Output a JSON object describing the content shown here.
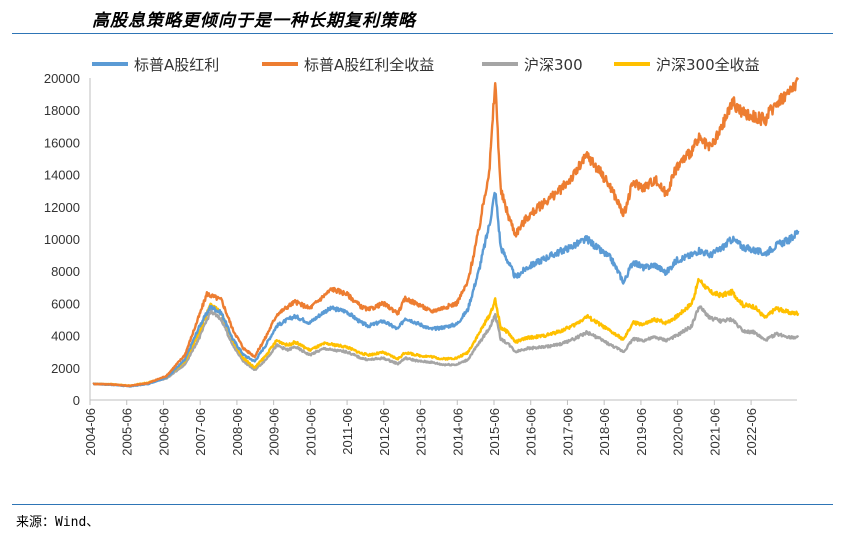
{
  "header": {
    "title": "高股息策略更倾向于是一种长期复利策略"
  },
  "footer": {
    "source": "来源：Wind、"
  },
  "colors": {
    "rule": "#2e75b6"
  },
  "chart_data": {
    "type": "line",
    "title": "高股息策略更倾向于是一种长期复利策略",
    "xlabel": "",
    "ylabel": "",
    "ylim": [
      0,
      20000
    ],
    "yticks": [
      0,
      2000,
      4000,
      6000,
      8000,
      10000,
      12000,
      14000,
      16000,
      18000,
      20000
    ],
    "xticks": [
      "2004-06",
      "2005-06",
      "2006-06",
      "2007-06",
      "2008-06",
      "2009-06",
      "2010-06",
      "2011-06",
      "2012-06",
      "2013-06",
      "2014-06",
      "2015-06",
      "2016-06",
      "2017-06",
      "2018-06",
      "2019-06",
      "2020-06",
      "2021-06",
      "2022-06"
    ],
    "x_range": [
      "2004-06",
      "2023-09"
    ],
    "grid": false,
    "legend_position": "top",
    "series": [
      {
        "name": "标普A股红利",
        "color": "#5b9bd5",
        "points": [
          [
            2004.5,
            1000
          ],
          [
            2005.0,
            950
          ],
          [
            2005.5,
            850
          ],
          [
            2006.0,
            1000
          ],
          [
            2006.5,
            1400
          ],
          [
            2007.0,
            2500
          ],
          [
            2007.4,
            4600
          ],
          [
            2007.7,
            5800
          ],
          [
            2008.0,
            5400
          ],
          [
            2008.3,
            3800
          ],
          [
            2008.6,
            2800
          ],
          [
            2008.9,
            2400
          ],
          [
            2009.2,
            3400
          ],
          [
            2009.5,
            4600
          ],
          [
            2009.8,
            5000
          ],
          [
            2010.0,
            5200
          ],
          [
            2010.4,
            4800
          ],
          [
            2010.8,
            5500
          ],
          [
            2011.0,
            5700
          ],
          [
            2011.4,
            5500
          ],
          [
            2011.8,
            4800
          ],
          [
            2012.0,
            4600
          ],
          [
            2012.4,
            4900
          ],
          [
            2012.8,
            4400
          ],
          [
            2013.0,
            5100
          ],
          [
            2013.4,
            4700
          ],
          [
            2013.7,
            4400
          ],
          [
            2014.0,
            4500
          ],
          [
            2014.4,
            4700
          ],
          [
            2014.7,
            5600
          ],
          [
            2015.0,
            8000
          ],
          [
            2015.3,
            11000
          ],
          [
            2015.45,
            13000
          ],
          [
            2015.6,
            9500
          ],
          [
            2015.8,
            8600
          ],
          [
            2016.0,
            7600
          ],
          [
            2016.3,
            8200
          ],
          [
            2016.8,
            8800
          ],
          [
            2017.2,
            9200
          ],
          [
            2017.6,
            9600
          ],
          [
            2017.95,
            10000
          ],
          [
            2018.3,
            9300
          ],
          [
            2018.6,
            8800
          ],
          [
            2018.95,
            7300
          ],
          [
            2019.2,
            8600
          ],
          [
            2019.5,
            8200
          ],
          [
            2019.8,
            8400
          ],
          [
            2020.1,
            7900
          ],
          [
            2020.4,
            8700
          ],
          [
            2020.8,
            9000
          ],
          [
            2021.0,
            9300
          ],
          [
            2021.3,
            9000
          ],
          [
            2021.6,
            9400
          ],
          [
            2021.9,
            10000
          ],
          [
            2022.2,
            9500
          ],
          [
            2022.5,
            9300
          ],
          [
            2022.8,
            9100
          ],
          [
            2023.1,
            9600
          ],
          [
            2023.5,
            10000
          ],
          [
            2023.7,
            10500
          ]
        ]
      },
      {
        "name": "标普A股红利全收益",
        "color": "#ed7d31",
        "points": [
          [
            2004.5,
            1000
          ],
          [
            2005.0,
            970
          ],
          [
            2005.5,
            880
          ],
          [
            2006.0,
            1050
          ],
          [
            2006.5,
            1500
          ],
          [
            2007.0,
            2800
          ],
          [
            2007.4,
            5300
          ],
          [
            2007.6,
            6600
          ],
          [
            2007.8,
            6400
          ],
          [
            2008.0,
            6200
          ],
          [
            2008.3,
            4400
          ],
          [
            2008.6,
            3200
          ],
          [
            2008.9,
            2700
          ],
          [
            2009.2,
            3900
          ],
          [
            2009.5,
            5300
          ],
          [
            2009.8,
            5800
          ],
          [
            2010.0,
            6100
          ],
          [
            2010.4,
            5700
          ],
          [
            2010.8,
            6500
          ],
          [
            2011.0,
            6900
          ],
          [
            2011.4,
            6600
          ],
          [
            2011.8,
            5800
          ],
          [
            2012.0,
            5600
          ],
          [
            2012.4,
            6000
          ],
          [
            2012.8,
            5400
          ],
          [
            2013.0,
            6300
          ],
          [
            2013.4,
            5900
          ],
          [
            2013.7,
            5500
          ],
          [
            2014.0,
            5700
          ],
          [
            2014.4,
            6000
          ],
          [
            2014.7,
            7300
          ],
          [
            2015.0,
            10500
          ],
          [
            2015.3,
            14500
          ],
          [
            2015.45,
            19800
          ],
          [
            2015.6,
            13000
          ],
          [
            2015.8,
            11500
          ],
          [
            2016.0,
            10300
          ],
          [
            2016.3,
            11300
          ],
          [
            2016.8,
            12300
          ],
          [
            2017.2,
            13000
          ],
          [
            2017.6,
            14000
          ],
          [
            2017.95,
            15200
          ],
          [
            2018.3,
            14200
          ],
          [
            2018.6,
            13200
          ],
          [
            2018.95,
            11500
          ],
          [
            2019.2,
            13500
          ],
          [
            2019.5,
            13200
          ],
          [
            2019.8,
            13700
          ],
          [
            2020.1,
            12800
          ],
          [
            2020.4,
            14500
          ],
          [
            2020.8,
            15500
          ],
          [
            2021.0,
            16200
          ],
          [
            2021.3,
            15600
          ],
          [
            2021.6,
            16800
          ],
          [
            2021.9,
            18500
          ],
          [
            2022.2,
            17800
          ],
          [
            2022.5,
            17600
          ],
          [
            2022.8,
            17400
          ],
          [
            2023.1,
            18500
          ],
          [
            2023.5,
            19200
          ],
          [
            2023.7,
            20000
          ]
        ]
      },
      {
        "name": "沪深300",
        "color": "#a5a5a5",
        "points": [
          [
            2004.5,
            1000
          ],
          [
            2005.0,
            970
          ],
          [
            2005.5,
            870
          ],
          [
            2006.0,
            1050
          ],
          [
            2006.5,
            1350
          ],
          [
            2007.0,
            2200
          ],
          [
            2007.4,
            3900
          ],
          [
            2007.7,
            5500
          ],
          [
            2008.0,
            5000
          ],
          [
            2008.3,
            3400
          ],
          [
            2008.6,
            2400
          ],
          [
            2008.9,
            1850
          ],
          [
            2009.2,
            2500
          ],
          [
            2009.5,
            3400
          ],
          [
            2009.8,
            3100
          ],
          [
            2010.0,
            3300
          ],
          [
            2010.4,
            2800
          ],
          [
            2010.8,
            3200
          ],
          [
            2011.0,
            3100
          ],
          [
            2011.4,
            3000
          ],
          [
            2011.8,
            2600
          ],
          [
            2012.0,
            2500
          ],
          [
            2012.4,
            2600
          ],
          [
            2012.8,
            2250
          ],
          [
            2013.0,
            2600
          ],
          [
            2013.4,
            2400
          ],
          [
            2013.7,
            2350
          ],
          [
            2014.0,
            2200
          ],
          [
            2014.4,
            2200
          ],
          [
            2014.7,
            2500
          ],
          [
            2015.0,
            3500
          ],
          [
            2015.3,
            4500
          ],
          [
            2015.45,
            5300
          ],
          [
            2015.6,
            3800
          ],
          [
            2015.8,
            3500
          ],
          [
            2016.0,
            3000
          ],
          [
            2016.3,
            3200
          ],
          [
            2016.8,
            3300
          ],
          [
            2017.2,
            3450
          ],
          [
            2017.6,
            3800
          ],
          [
            2017.95,
            4200
          ],
          [
            2018.3,
            3800
          ],
          [
            2018.6,
            3400
          ],
          [
            2018.95,
            3000
          ],
          [
            2019.2,
            3800
          ],
          [
            2019.5,
            3700
          ],
          [
            2019.8,
            3900
          ],
          [
            2020.1,
            3700
          ],
          [
            2020.4,
            4000
          ],
          [
            2020.8,
            4600
          ],
          [
            2021.0,
            5800
          ],
          [
            2021.3,
            5100
          ],
          [
            2021.6,
            4900
          ],
          [
            2021.9,
            5000
          ],
          [
            2022.2,
            4300
          ],
          [
            2022.5,
            4200
          ],
          [
            2022.8,
            3700
          ],
          [
            2023.1,
            4100
          ],
          [
            2023.5,
            3900
          ],
          [
            2023.7,
            3900
          ]
        ]
      },
      {
        "name": "沪深300全收益",
        "color": "#ffc000",
        "points": [
          [
            2004.5,
            1000
          ],
          [
            2005.0,
            980
          ],
          [
            2005.5,
            890
          ],
          [
            2006.0,
            1080
          ],
          [
            2006.5,
            1420
          ],
          [
            2007.0,
            2400
          ],
          [
            2007.4,
            4300
          ],
          [
            2007.7,
            5900
          ],
          [
            2008.0,
            5400
          ],
          [
            2008.3,
            3700
          ],
          [
            2008.6,
            2600
          ],
          [
            2008.9,
            2000
          ],
          [
            2009.2,
            2750
          ],
          [
            2009.5,
            3700
          ],
          [
            2009.8,
            3400
          ],
          [
            2010.0,
            3600
          ],
          [
            2010.4,
            3100
          ],
          [
            2010.8,
            3500
          ],
          [
            2011.0,
            3450
          ],
          [
            2011.4,
            3300
          ],
          [
            2011.8,
            2900
          ],
          [
            2012.0,
            2800
          ],
          [
            2012.4,
            2950
          ],
          [
            2012.8,
            2550
          ],
          [
            2013.0,
            2950
          ],
          [
            2013.4,
            2750
          ],
          [
            2013.7,
            2700
          ],
          [
            2014.0,
            2550
          ],
          [
            2014.4,
            2600
          ],
          [
            2014.7,
            2950
          ],
          [
            2015.0,
            4100
          ],
          [
            2015.3,
            5300
          ],
          [
            2015.45,
            6200
          ],
          [
            2015.6,
            4500
          ],
          [
            2015.8,
            4200
          ],
          [
            2016.0,
            3600
          ],
          [
            2016.3,
            3850
          ],
          [
            2016.8,
            4000
          ],
          [
            2017.2,
            4250
          ],
          [
            2017.6,
            4650
          ],
          [
            2017.95,
            5200
          ],
          [
            2018.3,
            4700
          ],
          [
            2018.6,
            4250
          ],
          [
            2018.95,
            3750
          ],
          [
            2019.2,
            4800
          ],
          [
            2019.5,
            4700
          ],
          [
            2019.8,
            5000
          ],
          [
            2020.1,
            4800
          ],
          [
            2020.4,
            5200
          ],
          [
            2020.8,
            6000
          ],
          [
            2021.0,
            7500
          ],
          [
            2021.3,
            6700
          ],
          [
            2021.6,
            6500
          ],
          [
            2021.9,
            6700
          ],
          [
            2022.2,
            5900
          ],
          [
            2022.5,
            5800
          ],
          [
            2022.8,
            5100
          ],
          [
            2023.1,
            5700
          ],
          [
            2023.5,
            5400
          ],
          [
            2023.7,
            5400
          ]
        ]
      }
    ]
  }
}
